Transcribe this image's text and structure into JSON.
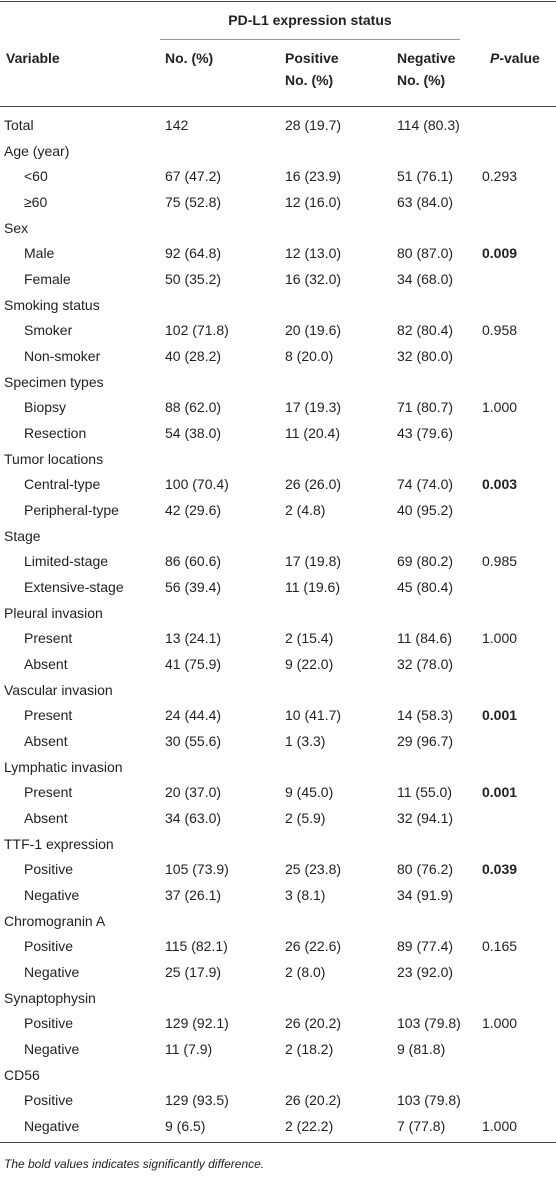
{
  "table": {
    "group_header": "PD-L1 expression status",
    "columns": [
      {
        "lines": [
          "Variable"
        ]
      },
      {
        "lines": [
          "No. (%)"
        ]
      },
      {
        "lines": [
          "Positive",
          "No. (%)"
        ]
      },
      {
        "lines": [
          "Negative",
          "No. (%)"
        ]
      },
      {
        "italic": "P",
        "text": "-value"
      }
    ],
    "rows": [
      {
        "label": "Total",
        "no": "142",
        "pos": "28 (19.7)",
        "neg": "114 (80.3)"
      },
      {
        "label": "Age (year)"
      },
      {
        "label": "<60",
        "sub": true,
        "no": "67 (47.2)",
        "pos": "16 (23.9)",
        "neg": "51 (76.1)",
        "p": "0.293"
      },
      {
        "label": "≥60",
        "sub": true,
        "no": "75 (52.8)",
        "pos": "12 (16.0)",
        "neg": "63 (84.0)"
      },
      {
        "label": "Sex"
      },
      {
        "label": "Male",
        "sub": true,
        "no": "92 (64.8)",
        "pos": "12 (13.0)",
        "neg": "80 (87.0)",
        "p": "0.009",
        "p_bold": true
      },
      {
        "label": "Female",
        "sub": true,
        "no": "50 (35.2)",
        "pos": "16 (32.0)",
        "neg": "34 (68.0)"
      },
      {
        "label": "Smoking status"
      },
      {
        "label": "Smoker",
        "sub": true,
        "no": "102 (71.8)",
        "pos": "20 (19.6)",
        "neg": "82 (80.4)",
        "p": "0.958"
      },
      {
        "label": "Non-smoker",
        "sub": true,
        "no": "40 (28.2)",
        "pos": "8 (20.0)",
        "neg": "32 (80.0)"
      },
      {
        "label": "Specimen types"
      },
      {
        "label": "Biopsy",
        "sub": true,
        "no": "88 (62.0)",
        "pos": "17 (19.3)",
        "neg": "71 (80.7)",
        "p": "1.000"
      },
      {
        "label": "Resection",
        "sub": true,
        "no": "54 (38.0)",
        "pos": "11 (20.4)",
        "neg": "43 (79.6)"
      },
      {
        "label": "Tumor locations"
      },
      {
        "label": "Central-type",
        "sub": true,
        "no": "100 (70.4)",
        "pos": "26 (26.0)",
        "neg": "74 (74.0)",
        "p": "0.003",
        "p_bold": true
      },
      {
        "label": "Peripheral-type",
        "sub": true,
        "no": "42 (29.6)",
        "pos": "2 (4.8)",
        "neg": "40 (95.2)"
      },
      {
        "label": "Stage"
      },
      {
        "label": "Limited-stage",
        "sub": true,
        "no": "86 (60.6)",
        "pos": "17 (19.8)",
        "neg": "69 (80.2)",
        "p": "0.985"
      },
      {
        "label": "Extensive-stage",
        "sub": true,
        "no": "56 (39.4)",
        "pos": "11 (19.6)",
        "neg": "45 (80.4)"
      },
      {
        "label": "Pleural invasion"
      },
      {
        "label": "Present",
        "sub": true,
        "no": "13 (24.1)",
        "pos": "2 (15.4)",
        "neg": "11 (84.6)",
        "p": "1.000"
      },
      {
        "label": "Absent",
        "sub": true,
        "no": "41 (75.9)",
        "pos": "9 (22.0)",
        "neg": "32 (78.0)"
      },
      {
        "label": "Vascular invasion"
      },
      {
        "label": "Present",
        "sub": true,
        "no": "24 (44.4)",
        "pos": "10 (41.7)",
        "neg": "14 (58.3)",
        "p": "0.001",
        "p_bold": true
      },
      {
        "label": "Absent",
        "sub": true,
        "no": "30 (55.6)",
        "pos": "1 (3.3)",
        "neg": "29 (96.7)"
      },
      {
        "label": "Lymphatic invasion"
      },
      {
        "label": "Present",
        "sub": true,
        "no": "20 (37.0)",
        "pos": "9 (45.0)",
        "neg": "11 (55.0)",
        "p": "0.001",
        "p_bold": true
      },
      {
        "label": "Absent",
        "sub": true,
        "no": "34 (63.0)",
        "pos": "2 (5.9)",
        "neg": "32 (94.1)"
      },
      {
        "label": "TTF-1 expression"
      },
      {
        "label": "Positive",
        "sub": true,
        "no": "105 (73.9)",
        "pos": "25 (23.8)",
        "neg": "80 (76.2)",
        "p": "0.039",
        "p_bold": true
      },
      {
        "label": "Negative",
        "sub": true,
        "no": "37 (26.1)",
        "pos": "3 (8.1)",
        "neg": "34 (91.9)"
      },
      {
        "label": "Chromogranin A"
      },
      {
        "label": "Positive",
        "sub": true,
        "no": "115 (82.1)",
        "pos": "26 (22.6)",
        "neg": "89 (77.4)",
        "p": "0.165"
      },
      {
        "label": "Negative",
        "sub": true,
        "no": "25 (17.9)",
        "pos": "2 (8.0)",
        "neg": "23 (92.0)"
      },
      {
        "label": "Synaptophysin"
      },
      {
        "label": "Positive",
        "sub": true,
        "no": "129 (92.1)",
        "pos": "26 (20.2)",
        "neg": "103 (79.8)",
        "p": "1.000"
      },
      {
        "label": "Negative",
        "sub": true,
        "no": "11 (7.9)",
        "pos": "2 (18.2)",
        "neg": "9 (81.8)"
      },
      {
        "label": "CD56"
      },
      {
        "label": "Positive",
        "sub": true,
        "no": "129 (93.5)",
        "pos": "26 (20.2)",
        "neg": "103 (79.8)"
      },
      {
        "label": "Negative",
        "sub": true,
        "no": "9 (6.5)",
        "pos": "2 (22.2)",
        "neg": "7 (77.8)",
        "p": "1.000"
      }
    ],
    "footnote": "The bold values indicates significantly difference."
  }
}
